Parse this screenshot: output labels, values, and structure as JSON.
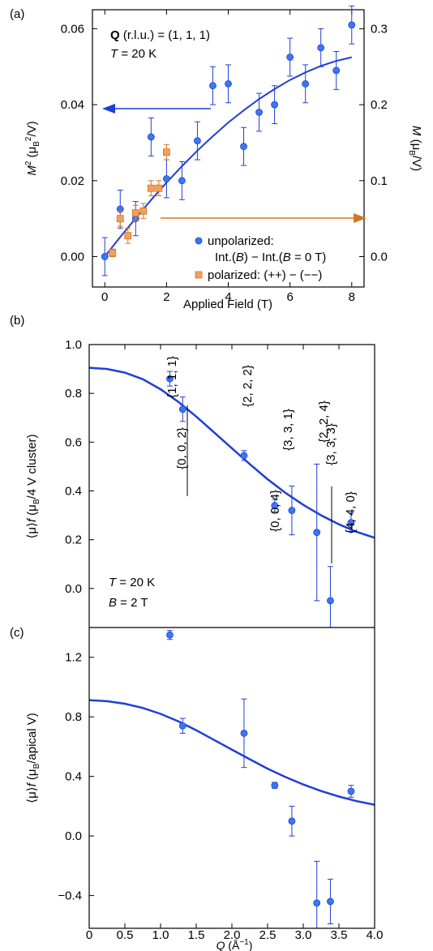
{
  "colors": {
    "blue": "#1f3fd6",
    "blue_fill": "#3a78f0",
    "orange": "#d9731f",
    "orange_fill": "#f0a060",
    "axis": "#000000"
  },
  "chart_data": [
    {
      "panel": "(a)",
      "type": "scatter",
      "xlabel": "Applied Field (T)",
      "ylabel": "M² (μB²/V)",
      "ylabel_right": "M (μB/V)",
      "xlim": [
        -0.4,
        8.4
      ],
      "ylim": [
        -0.008,
        0.065
      ],
      "xticks": [
        "0",
        "2",
        "4",
        "6",
        "8"
      ],
      "yticks": [
        "0.00",
        "0.02",
        "0.04",
        "0.06"
      ],
      "yticks_right": [
        "0.0",
        "0.1",
        "0.2",
        "0.3"
      ],
      "annotation_lines": [
        "Q (r.l.u.) = (1, 1, 1)",
        "T = 20 K"
      ],
      "series": [
        {
          "name": "unpolarized: Int.(B) − Int.(B = 0 T)",
          "color": "#1f3fd6",
          "x": [
            0,
            0.5,
            1.0,
            1.5,
            2.0,
            2.5,
            3.0,
            3.5,
            4.0,
            4.5,
            5.0,
            5.5,
            6.0,
            6.5,
            7.0,
            7.5,
            8.0
          ],
          "y": [
            0.0,
            0.0125,
            0.01,
            0.0315,
            0.0205,
            0.02,
            0.0305,
            0.045,
            0.0455,
            0.029,
            0.038,
            0.04,
            0.0525,
            0.0455,
            0.055,
            0.049,
            0.061
          ],
          "err": [
            0.005,
            0.005,
            0.0045,
            0.005,
            0.005,
            0.005,
            0.005,
            0.005,
            0.005,
            0.005,
            0.005,
            0.005,
            0.005,
            0.005,
            0.005,
            0.005,
            0.005
          ]
        },
        {
          "name": "polarized: (++) − (−−)",
          "color": "#d9731f",
          "x": [
            0.25,
            0.5,
            0.75,
            1.0,
            1.25,
            1.5,
            1.75,
            2.0
          ],
          "y": [
            0.001,
            0.01,
            0.0055,
            0.0115,
            0.012,
            0.018,
            0.018,
            0.0275
          ],
          "err": [
            0.001,
            0.002,
            0.002,
            0.002,
            0.002,
            0.002,
            0.002,
            0.002
          ]
        },
        {
          "name": "",
          "type": "line",
          "x": [
            0,
            0.5,
            1,
            1.5,
            2,
            2.5,
            3,
            3.5,
            4,
            4.5,
            5,
            5.5,
            6,
            6.5,
            7,
            7.5,
            8
          ],
          "y": [
            0.0,
            0.0052,
            0.0101,
            0.0149,
            0.0195,
            0.0238,
            0.0279,
            0.0317,
            0.0353,
            0.0385,
            0.0415,
            0.0441,
            0.0465,
            0.0485,
            0.0502,
            0.0515,
            0.0525
          ]
        }
      ],
      "arrows": [
        {
          "direction": "left",
          "axis": "left",
          "color": "#1f3fd6"
        },
        {
          "direction": "right",
          "axis": "right",
          "color": "#d9731f"
        }
      ]
    },
    {
      "panel": "(b)",
      "type": "scatter",
      "ylabel": "⟨μ⟩f (μB/4 V cluster)",
      "xlim": [
        0,
        4.0
      ],
      "ylim": [
        -0.16,
        1.0
      ],
      "yticks": [
        "0.0",
        "0.2",
        "0.4",
        "0.6",
        "0.8",
        "1.0"
      ],
      "annotation_lines": [
        "T = 20 K",
        "B = 2 T"
      ],
      "series": [
        {
          "name": "",
          "x": [
            1.13,
            1.31,
            2.17,
            2.6,
            2.84,
            3.19,
            3.38,
            3.67
          ],
          "y": [
            0.86,
            0.735,
            0.545,
            0.34,
            0.32,
            0.23,
            -0.05,
            0.27
          ],
          "err": [
            0.03,
            0.05,
            0.02,
            0.025,
            0.1,
            0.28,
            0.14,
            0.04
          ],
          "labels": [
            "{1, 1, 1}",
            "{0, 0, 2}",
            "{2, 2, 2}",
            "{0, 0, 4}",
            "{3, 3, 1}",
            "{2, 2, 4}",
            "{3, 3, 3}",
            "{4, 4, 0}"
          ]
        },
        {
          "name": "",
          "type": "line",
          "x": [
            0,
            0.25,
            0.5,
            0.75,
            1,
            1.25,
            1.5,
            1.75,
            2,
            2.25,
            2.5,
            2.75,
            3,
            3.25,
            3.5,
            3.75,
            4
          ],
          "y": [
            0.905,
            0.9,
            0.885,
            0.858,
            0.817,
            0.765,
            0.705,
            0.64,
            0.575,
            0.51,
            0.448,
            0.392,
            0.343,
            0.3,
            0.263,
            0.232,
            0.208
          ]
        }
      ]
    },
    {
      "panel": "(c)",
      "type": "scatter",
      "xlabel": "Q (Å⁻¹)",
      "ylabel": "⟨μ⟩f (μB/apical V)",
      "xlim": [
        0,
        4.0
      ],
      "ylim": [
        -0.62,
        1.4
      ],
      "xticks": [
        "0",
        "0.5",
        "1.0",
        "1.5",
        "2.0",
        "2.5",
        "3.0",
        "3.5",
        "4.0"
      ],
      "yticks": [
        "−0.4",
        "0.0",
        "0.4",
        "0.8",
        "1.2"
      ],
      "series": [
        {
          "name": "",
          "x": [
            1.13,
            1.31,
            2.17,
            2.6,
            2.84,
            3.19,
            3.38,
            3.67
          ],
          "y": [
            1.35,
            0.74,
            0.69,
            0.34,
            0.1,
            -0.45,
            -0.44,
            0.3
          ],
          "err": [
            0.03,
            0.05,
            0.23,
            0.02,
            0.1,
            0.28,
            0.15,
            0.04
          ]
        },
        {
          "name": "",
          "type": "line",
          "x": [
            0,
            0.25,
            0.5,
            0.75,
            1,
            1.25,
            1.5,
            1.75,
            2,
            2.25,
            2.5,
            2.75,
            3,
            3.25,
            3.5,
            3.75,
            4
          ],
          "y": [
            0.912,
            0.905,
            0.888,
            0.86,
            0.82,
            0.77,
            0.71,
            0.645,
            0.58,
            0.515,
            0.452,
            0.396,
            0.346,
            0.302,
            0.265,
            0.234,
            0.21
          ]
        }
      ]
    }
  ]
}
